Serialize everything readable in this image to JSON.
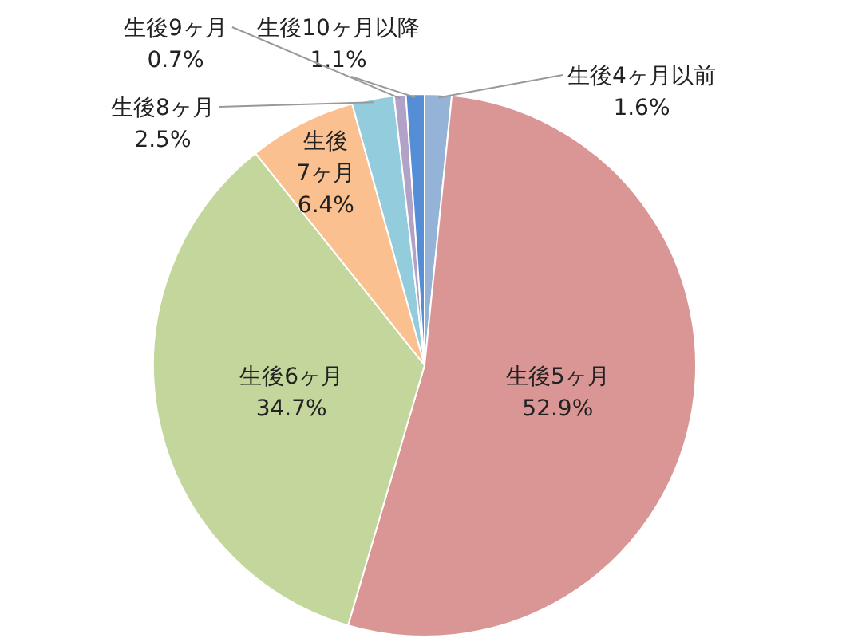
{
  "chart_data": {
    "type": "pie",
    "categories": [
      "生後4ヶ月以前",
      "生後5ヶ月",
      "生後6ヶ月",
      "生後7ヶ月",
      "生後8ヶ月",
      "生後9ヶ月",
      "生後10ヶ月以降"
    ],
    "values": [
      1.6,
      52.9,
      34.7,
      6.4,
      2.5,
      0.7,
      1.1
    ],
    "value_labels": [
      "1.6%",
      "52.9%",
      "34.7%",
      "6.4%",
      "2.5%",
      "0.7%",
      "1.1%"
    ],
    "colors": [
      "#95b3d7",
      "#d99694",
      "#c3d69b",
      "#fac090",
      "#93cddd",
      "#b3a2c7",
      "#558ed5"
    ]
  }
}
